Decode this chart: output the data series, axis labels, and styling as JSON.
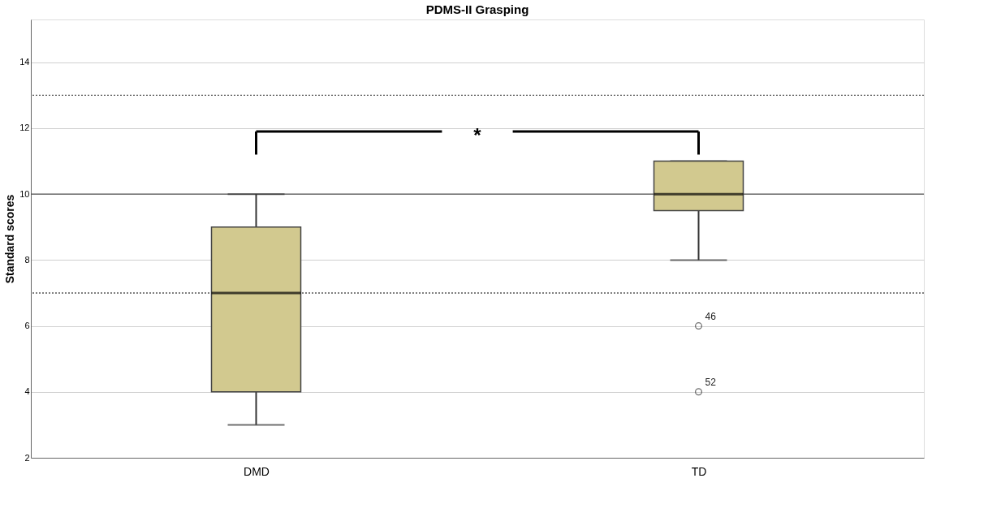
{
  "chart_data": {
    "type": "box",
    "title": "PDMS-II Grasping",
    "ylabel": "Standard scores",
    "categories": [
      "DMD",
      "TD"
    ],
    "series": [
      {
        "color": "#d2c98f",
        "boxes": [
          {
            "low": 3,
            "q1": 4,
            "median": 7,
            "q3": 9,
            "high": 10
          },
          {
            "low": 8,
            "q1": 9.5,
            "median": 10,
            "q3": 11,
            "high": 11,
            "outliers": [
              6,
              4
            ]
          }
        ]
      }
    ],
    "ylim": [
      2,
      15.3
    ],
    "yticks": [
      2,
      4,
      6,
      8,
      10,
      12,
      14
    ],
    "grid": "y",
    "ref_lines": [
      {
        "axis": "y",
        "value": 13,
        "line_style": "dotted"
      },
      {
        "axis": "y",
        "value": 10,
        "line_style": "solid"
      },
      {
        "axis": "y",
        "value": 7,
        "line_style": "dotted"
      }
    ],
    "annotations": [
      "*",
      "46",
      "52"
    ]
  }
}
